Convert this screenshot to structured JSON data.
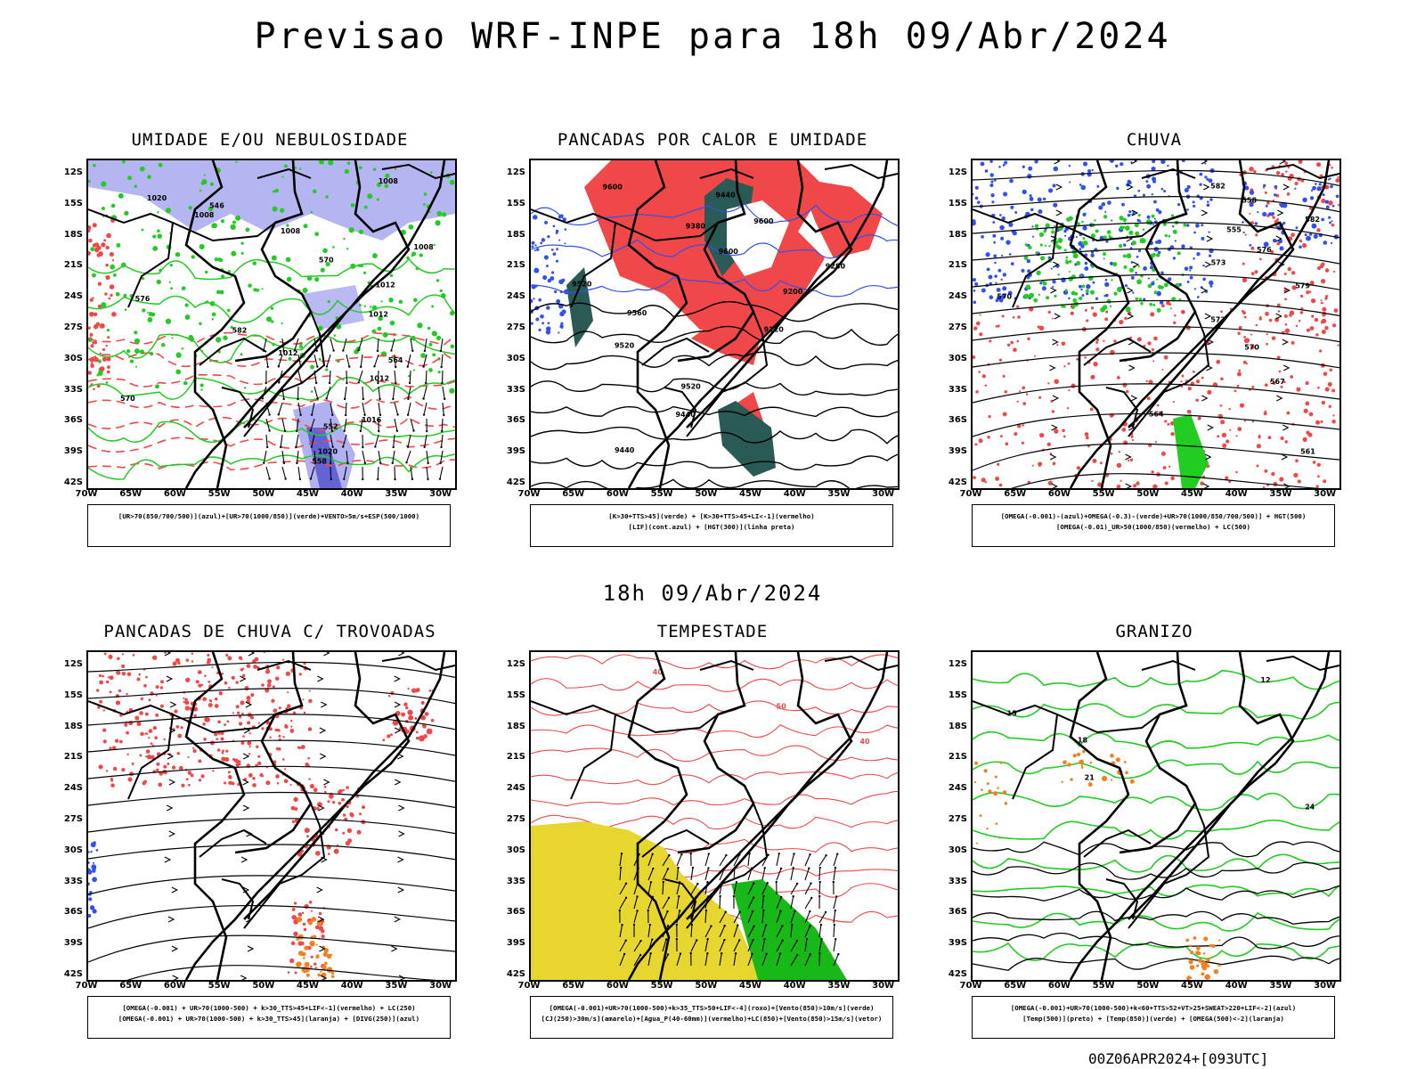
{
  "header": {
    "title": "Previsao WRF-INPE  para 18h 09/Abr/2024"
  },
  "middle": {
    "title": "18h 09/Abr/2024"
  },
  "footer": {
    "run": "00Z06APR2024+[093UTC]"
  },
  "axes": {
    "lat_labels": [
      "12S",
      "15S",
      "18S",
      "21S",
      "24S",
      "27S",
      "30S",
      "33S",
      "36S",
      "39S",
      "42S"
    ],
    "lon_labels": [
      "70W",
      "65W",
      "60W",
      "55W",
      "50W",
      "45W",
      "40W",
      "35W",
      "30W"
    ]
  },
  "panels": [
    {
      "title": "UMIDADE E/OU NEBULOSIDADE",
      "legend": [
        "[UR>70(850/700/500)](azul)+[UR>70(1000/850)](verde)+VENTO>5m/s+ESP(500/1000)"
      ],
      "contour_labels": [
        "1008",
        "1008",
        "1008",
        "1012",
        "1012",
        "1012",
        "1012",
        "1016",
        "1020",
        "1020",
        "1008",
        "570",
        "576",
        "582",
        "564",
        "570",
        "552",
        "558",
        "546"
      ]
    },
    {
      "title": "PANCADAS POR CALOR E UMIDADE",
      "legend": [
        "[K>30+TTS>45](verde) + [K>30+TTS>45+LI<-1](vermelho)",
        "[LIF](cont.azul) + [HGT(300)](linha preta)"
      ],
      "contour_labels": [
        "9600",
        "9600",
        "9600",
        "9520",
        "9560",
        "9520",
        "9520",
        "9440",
        "9440",
        "9440",
        "9380",
        "9280",
        "9200",
        "9120"
      ]
    },
    {
      "title": "CHUVA",
      "legend": [
        "[OMEGA(-0.001)-(azul)+OMEGA(-0.3)-(verde)+UR>70(1000/850/700/500)] + HGT(500)",
        "[OMEGA(-0.01)_UR>50(1000/850)(vermelho) + LC(500)"
      ],
      "contour_labels": [
        "582",
        "582",
        "576",
        "579",
        "573",
        "570",
        "567",
        "564",
        "561",
        "558",
        "555",
        "573",
        "570"
      ]
    },
    {
      "title": "PANCADAS DE CHUVA C/ TROVOADAS",
      "legend": [
        "[OMEGA(-0.001) + UR>70(1000-500) + k>30_TTS>45+LIF<-1](vermelho) + LC(250)",
        "[OMEGA(-0.001) + UR>70(1000-500) + k>30_TTS>45](laranja) + [DIVG(250)](azul)"
      ],
      "contour_labels": []
    },
    {
      "title": "TEMPESTADE",
      "legend": [
        "[OMEGA(-0.001)+UR>70(1000-500)+k>35_TTS>50+LIF<-4](roxo)+[Vento(850)>10m/s](verde)",
        "[CJ(250)>30m/s](amarelo)+[Agua_P(40-60mm)](vermelho)+LC(850)+[Vento(850)>15m/s](vetor)"
      ],
      "contour_labels": [
        "40",
        "50",
        "40"
      ]
    },
    {
      "title": "GRANIZO",
      "legend": [
        "[OMEGA(-0.001)+UR>70(1000-500)+k<60+TTS>52+VT>25+SWEAT>220+LIF<-2](azul)",
        "[Temp(500)](preto) + [Temp(850)](verde) + [OMEGA(500)<-2](laranja)"
      ],
      "contour_labels": [
        "12",
        "15",
        "18",
        "21",
        "24"
      ]
    }
  ],
  "colors": {
    "blue_fill": "#a8a8f0",
    "green": "#22cc22",
    "red": "#f04848",
    "orange": "#f08020",
    "dark_teal": "#2a5a55",
    "yellow": "#e8d630",
    "contour_blue": "#3050f0"
  }
}
